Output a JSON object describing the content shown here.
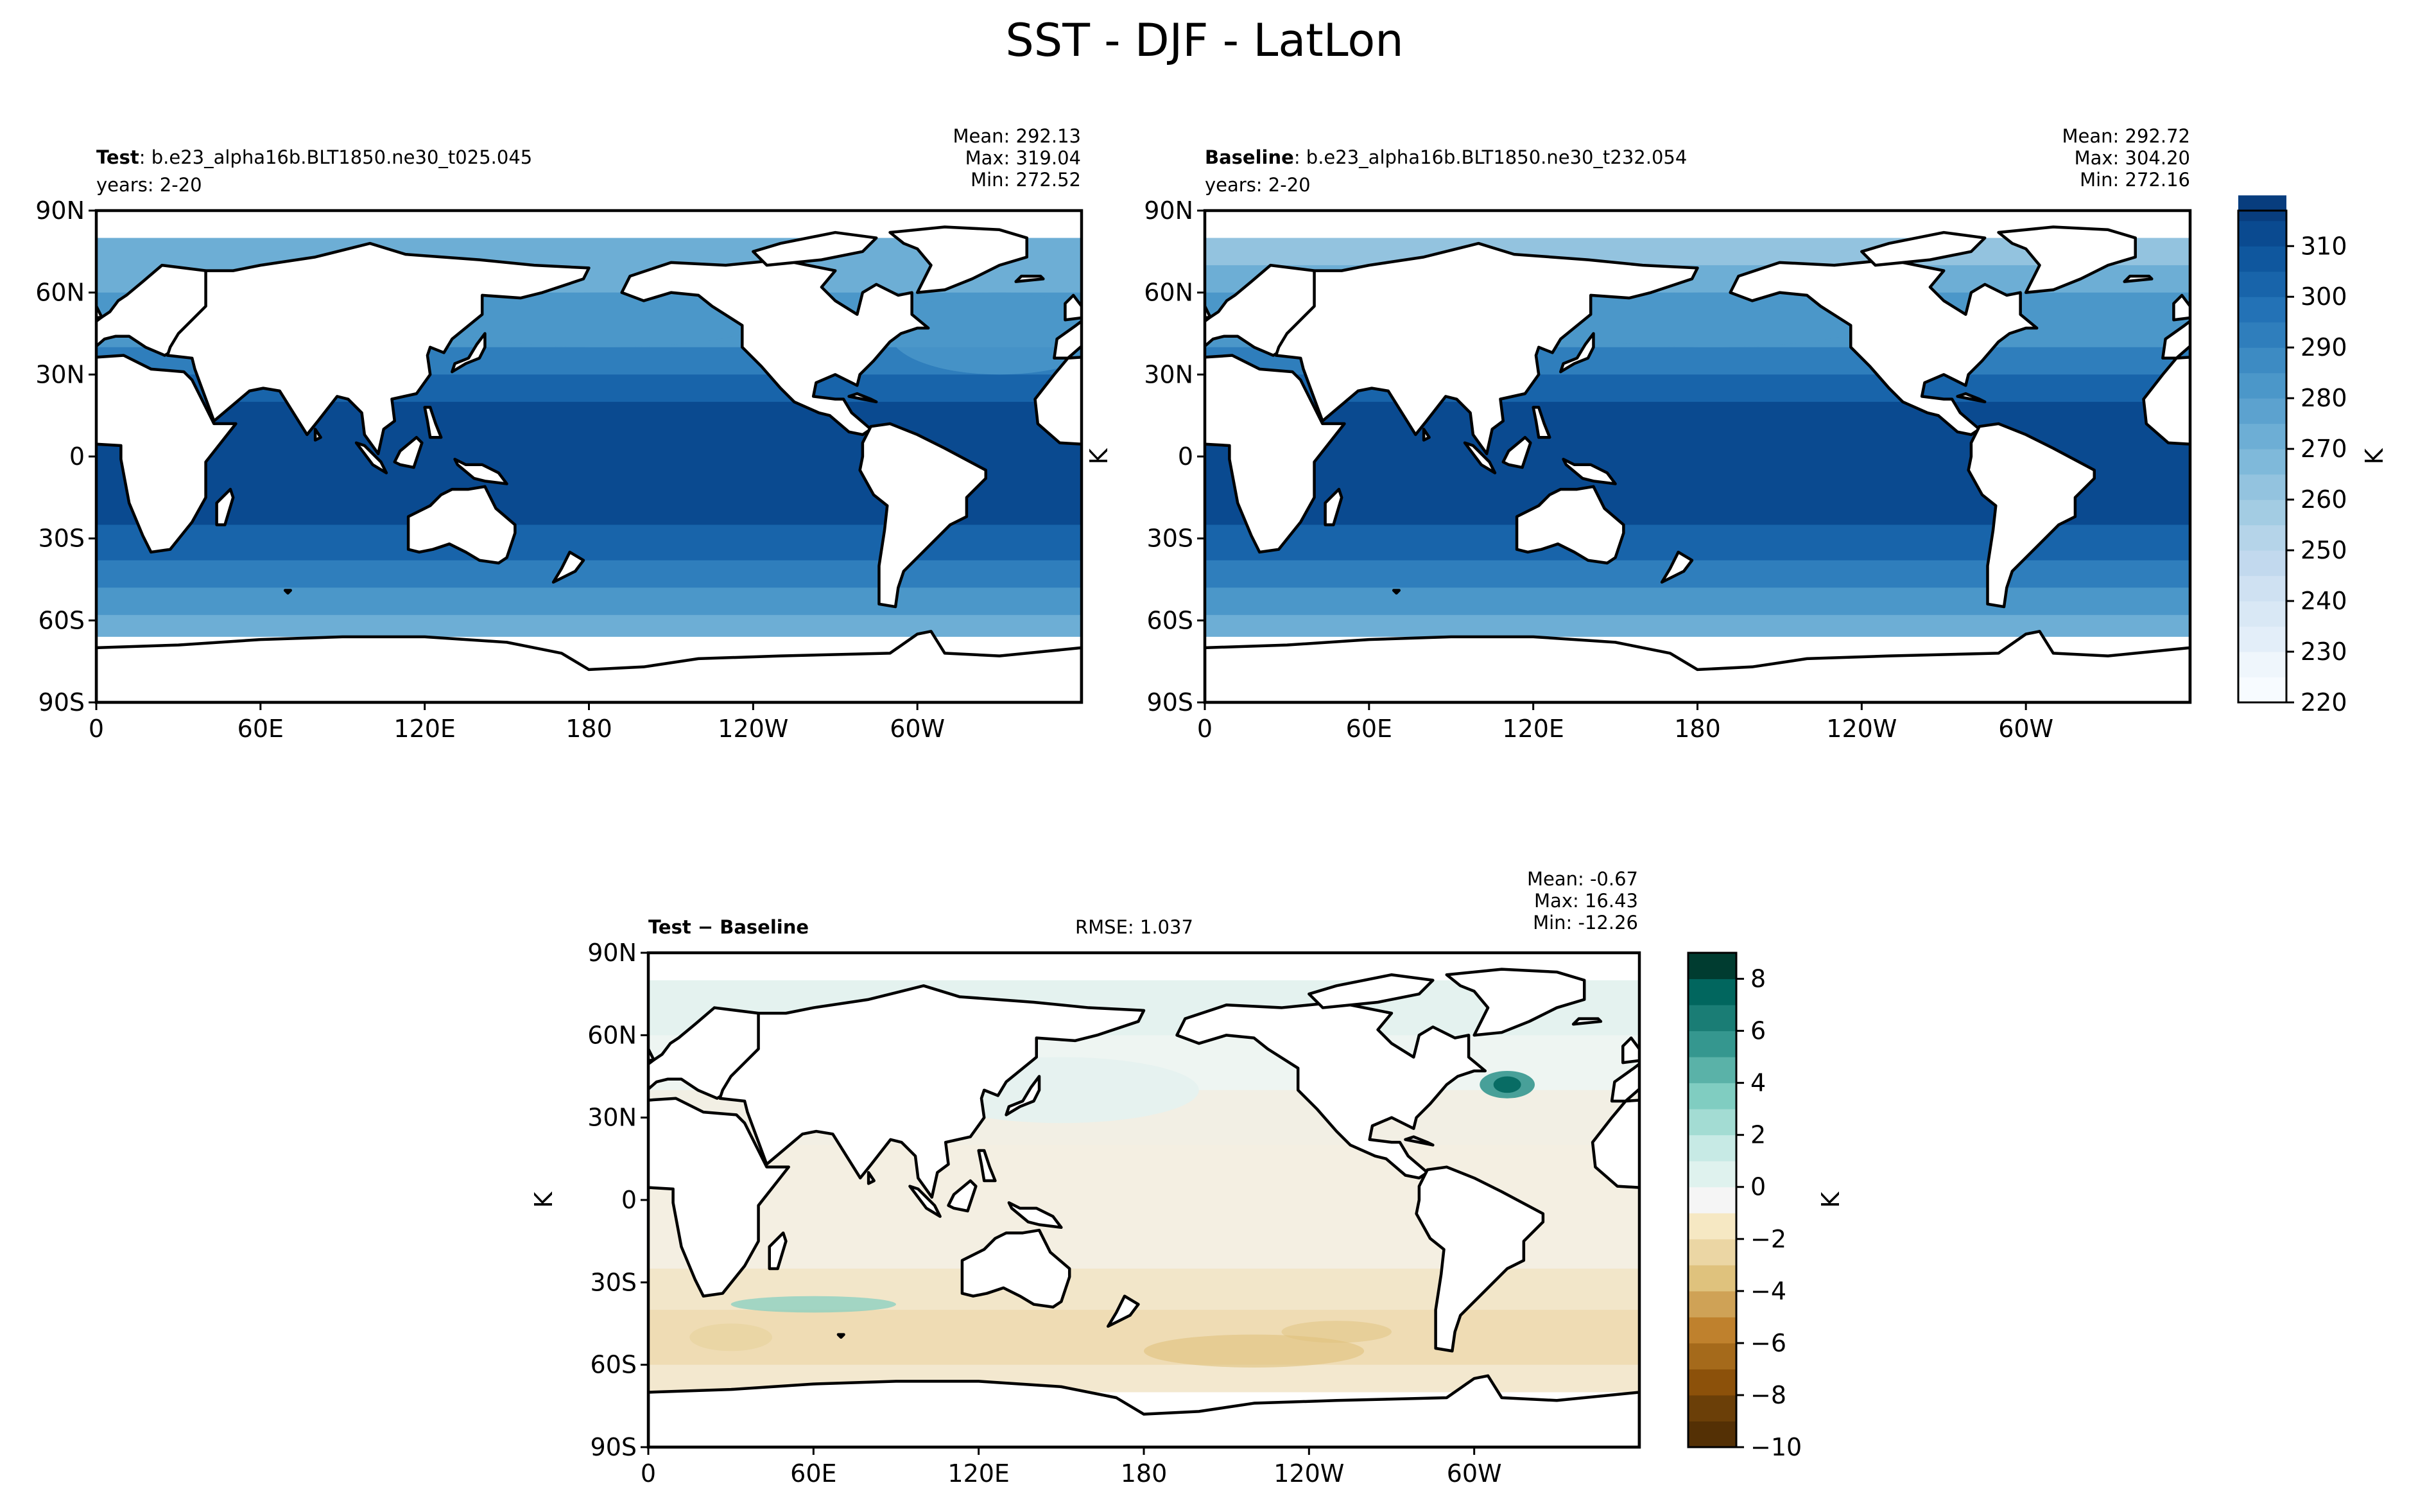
{
  "figure": {
    "title": "SST - DJF - LatLon"
  },
  "icons": {
    "coastline": "world-coastline-icon"
  },
  "colors": {
    "land": "#ffffff",
    "coast": "#000000",
    "seq": [
      "#f7fbff",
      "#e3eef9",
      "#cfe1f2",
      "#b5d4e9",
      "#93c3df",
      "#6daed5",
      "#4b97c9",
      "#2f7ebc",
      "#1864aa",
      "#0a4a90",
      "#08306b"
    ],
    "div": [
      "#543005",
      "#8c510a",
      "#bf812d",
      "#dfc27d",
      "#f6e8c3",
      "#f5f5f5",
      "#c7eae5",
      "#80cdc1",
      "#35978f",
      "#01665e",
      "#003c30"
    ]
  },
  "panels": {
    "test": {
      "label_bold": "Test",
      "label_rest": ": b.e23_alpha16b.BLT1850.ne30_t025.045",
      "years": "years: 2-20",
      "mean": "Mean: 292.13",
      "max": "Max: 319.04",
      "min": "Min: 272.52"
    },
    "baseline": {
      "label_bold": "Baseline",
      "label_rest": ": b.e23_alpha16b.BLT1850.ne30_t232.054",
      "years": "years: 2-20",
      "mean": "Mean: 292.72",
      "max": "Max: 304.20",
      "min": "Min: 272.16"
    },
    "diff": {
      "label_a": "Test",
      "label_sep": " − ",
      "label_b": "Baseline",
      "rmse": "RMSE: 1.037",
      "mean": "Mean: -0.67",
      "max": "Max: 16.43",
      "min": "Min: -12.26"
    }
  },
  "chart_data": [
    {
      "type": "heatmap",
      "name_shown": "Test",
      "field": "SST",
      "lon_ticks": [
        "0",
        "60E",
        "120E",
        "180",
        "120W",
        "60W"
      ],
      "lat_ticks": [
        "90N",
        "60N",
        "30N",
        "0",
        "30S",
        "60S",
        "90S"
      ],
      "lon_range": [
        0,
        360
      ],
      "lat_range": [
        -90,
        90
      ],
      "colorbar": "shared_seq",
      "stats": {
        "mean": 292.13,
        "max": 319.04,
        "min": 272.52
      }
    },
    {
      "type": "heatmap",
      "name_shown": "Baseline",
      "field": "SST",
      "lon_ticks": [
        "0",
        "60E",
        "120E",
        "180",
        "120W",
        "60W"
      ],
      "lat_ticks": [
        "90N",
        "60N",
        "30N",
        "0",
        "30S",
        "60S",
        "90S"
      ],
      "lon_range": [
        0,
        360
      ],
      "lat_range": [
        -90,
        90
      ],
      "ylabel": "K",
      "colorbar": "shared_seq",
      "stats": {
        "mean": 292.72,
        "max": 304.2,
        "min": 272.16
      }
    },
    {
      "type": "heatmap",
      "name_shown": "Test - Baseline",
      "field": "SST difference",
      "lon_ticks": [
        "0",
        "60E",
        "120E",
        "180",
        "120W",
        "60W"
      ],
      "lat_ticks": [
        "90N",
        "60N",
        "30N",
        "0",
        "30S",
        "60S",
        "90S"
      ],
      "lon_range": [
        0,
        360
      ],
      "lat_range": [
        -90,
        90
      ],
      "ylabel": "K",
      "stats": {
        "mean": -0.67,
        "max": 16.43,
        "min": -12.26,
        "rmse": 1.037
      }
    }
  ],
  "colorbars": {
    "seq": {
      "label": "K",
      "ticks": [
        "220",
        "230",
        "240",
        "250",
        "260",
        "270",
        "280",
        "290",
        "300",
        "310"
      ],
      "range": [
        220,
        315
      ]
    },
    "div": {
      "label": "K",
      "ticks": [
        "−10",
        "−8",
        "−6",
        "−4",
        "−2",
        "0",
        "2",
        "4",
        "6",
        "8"
      ],
      "range": [
        -10,
        9
      ]
    }
  }
}
